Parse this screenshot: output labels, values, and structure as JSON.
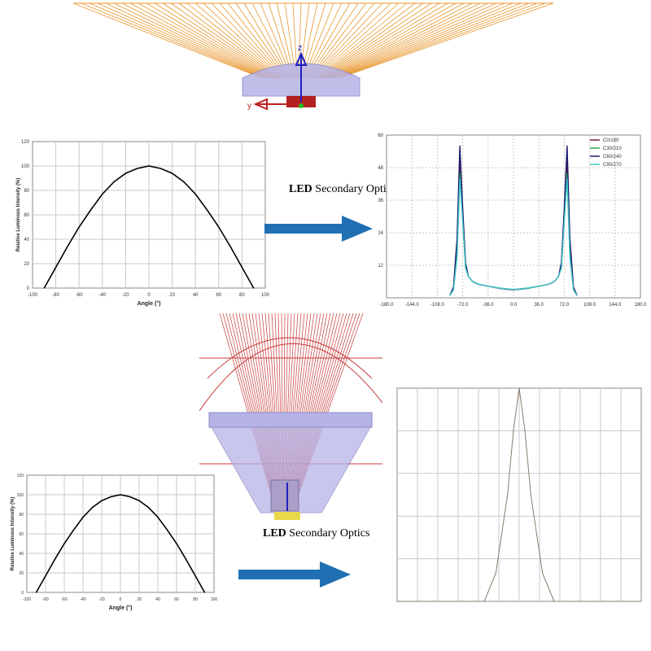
{
  "captions": {
    "top": {
      "led": "LED",
      "text": "Secondary Optics"
    },
    "bottom": {
      "led": "LED",
      "text": "Secondary Optics"
    }
  },
  "axis_marks": {
    "z": "z",
    "y": "y"
  },
  "colors": {
    "arrow": "#1f6fb2",
    "rays_orange": "#e8952a",
    "rays_red": "#c83a3a",
    "lens": "#b6b3e6",
    "grid": "#c8c8c8",
    "curve": "#000000"
  },
  "chart_data": [
    {
      "type": "line",
      "xlabel": "Angle (°)",
      "ylabel": "Relative Luminous Intensity (%)",
      "xlim": [
        -100,
        100
      ],
      "ylim": [
        0,
        120
      ],
      "xticks": [
        -100,
        -80,
        -60,
        -40,
        -20,
        0,
        20,
        40,
        60,
        80,
        100
      ],
      "yticks": [
        0,
        20,
        40,
        60,
        80,
        100,
        120
      ],
      "x": [
        -90,
        -80,
        -70,
        -60,
        -50,
        -40,
        -30,
        -20,
        -10,
        0,
        10,
        20,
        30,
        40,
        50,
        60,
        70,
        80,
        90
      ],
      "series": [
        {
          "values": [
            0,
            17,
            34,
            50,
            64,
            77,
            87,
            94,
            98,
            100,
            98,
            94,
            87,
            77,
            64,
            50,
            34,
            17,
            0
          ]
        }
      ]
    },
    {
      "type": "line",
      "xlim": [
        -180,
        180
      ],
      "ylim": [
        0,
        60
      ],
      "xticks": [
        "-180.0",
        "-144.0",
        "-108.0",
        "-72.0",
        "-36.0",
        "0.0",
        "36.0",
        "72.0",
        "108.0",
        "144.0",
        "180.0"
      ],
      "yticks": [
        12,
        24,
        36,
        48,
        60
      ],
      "legend": [
        "C0/180",
        "C30/210",
        "C60/240",
        "C90/270"
      ],
      "legend_position": "top-right",
      "x": [
        -90,
        -85,
        -80,
        -76,
        -72,
        -68,
        -64,
        -58,
        -50,
        -40,
        -30,
        -20,
        -10,
        0,
        10,
        20,
        30,
        40,
        50,
        58,
        64,
        68,
        72,
        76,
        80,
        85,
        90
      ],
      "series": [
        {
          "name": "C0/180",
          "color": "#7a1e3a",
          "values": [
            1,
            3,
            18,
            50,
            30,
            12,
            8,
            6,
            5,
            4.5,
            4,
            3.5,
            3.2,
            3,
            3.2,
            3.5,
            4,
            4.5,
            5,
            6,
            8,
            12,
            30,
            50,
            18,
            3,
            1
          ]
        },
        {
          "name": "C30/210",
          "color": "#2aa84a",
          "values": [
            1,
            3,
            16,
            46,
            29,
            11,
            8,
            6,
            5,
            4.5,
            4,
            3.6,
            3.3,
            3.1,
            3.3,
            3.6,
            4,
            4.5,
            5,
            6,
            8,
            11,
            29,
            46,
            16,
            3,
            1
          ]
        },
        {
          "name": "C60/240",
          "color": "#1a1a6e",
          "values": [
            1,
            4,
            22,
            56,
            33,
            13,
            8,
            6,
            5,
            4.5,
            4,
            3.5,
            3.2,
            3,
            3.2,
            3.5,
            4,
            4.5,
            5,
            6,
            8,
            13,
            33,
            56,
            22,
            4,
            1
          ]
        },
        {
          "name": "C90/270",
          "color": "#40c8c8",
          "values": [
            1,
            3,
            15,
            44,
            28,
            11,
            8,
            6,
            5,
            4.5,
            4,
            3.6,
            3.3,
            3.1,
            3.3,
            3.6,
            4,
            4.5,
            5,
            6,
            8,
            11,
            28,
            44,
            15,
            3,
            1
          ]
        }
      ]
    },
    {
      "type": "line",
      "xlabel": "Angle (°)",
      "ylabel": "Relative Luminous Intensity (%)",
      "xlim": [
        -100,
        100
      ],
      "ylim": [
        0,
        120
      ],
      "xticks": [
        -100,
        -80,
        -60,
        -40,
        -20,
        0,
        20,
        40,
        60,
        80,
        100
      ],
      "yticks": [
        0,
        20,
        40,
        60,
        80,
        100,
        120
      ],
      "x": [
        -90,
        -80,
        -70,
        -60,
        -50,
        -40,
        -30,
        -20,
        -10,
        0,
        10,
        20,
        30,
        40,
        50,
        60,
        70,
        80,
        90
      ],
      "series": [
        {
          "values": [
            0,
            17,
            34,
            50,
            64,
            77,
            87,
            94,
            98,
            100,
            98,
            94,
            87,
            77,
            64,
            50,
            34,
            17,
            0
          ]
        }
      ]
    },
    {
      "type": "line",
      "xlim": [
        -21,
        21
      ],
      "ylim": [
        0,
        30
      ],
      "x": [
        -21,
        -10,
        -6,
        -4,
        -2,
        -1,
        0,
        1,
        2,
        4,
        6,
        10,
        21
      ],
      "series": [
        {
          "color": "#8a7a6a",
          "values": [
            0,
            0,
            0,
            4,
            15,
            24,
            30,
            24,
            15,
            4,
            0,
            0,
            0
          ]
        }
      ]
    }
  ]
}
